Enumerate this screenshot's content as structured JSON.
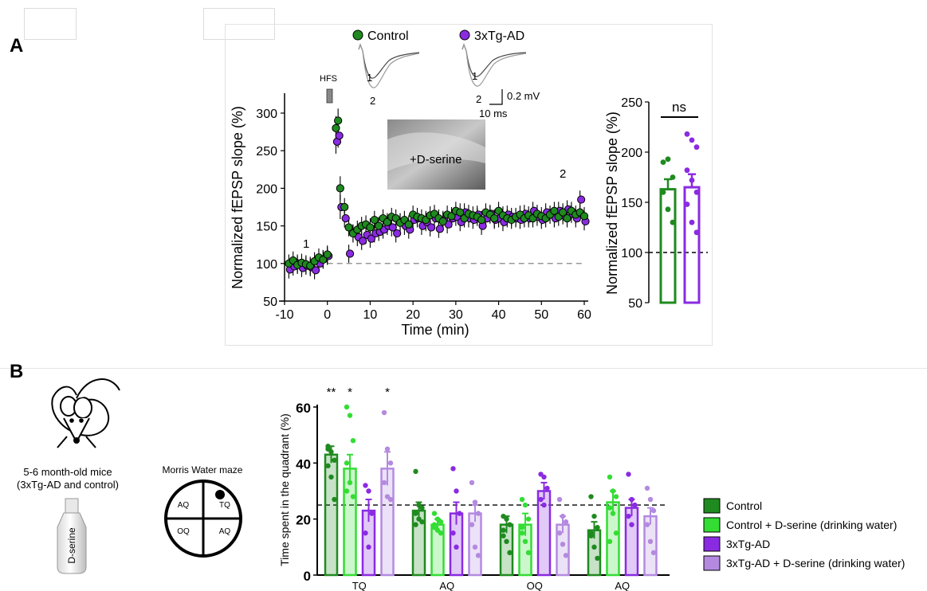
{
  "panels": {
    "a_label": "A",
    "b_label": "B"
  },
  "colors": {
    "control": "#1f8a1f",
    "control_dser": "#33dd33",
    "tg": "#8a2be2",
    "tg_dser": "#b48ae0",
    "dashed": "#777777"
  },
  "panelA": {
    "legend": [
      "Control",
      "3xTg-AD"
    ],
    "hfs_label": "HFS",
    "inset_label": "+D-serine",
    "trace_labels": {
      "one": "1",
      "two": "2"
    },
    "scalebar": {
      "voltage": "0.2 mV",
      "time": "10 ms"
    },
    "timepoint_labels": {
      "one": "1",
      "two": "2"
    },
    "bar_significance": "ns"
  },
  "panelB": {
    "mouse_caption_line1": "5-6 month-old mice",
    "mouse_caption_line2": "(3xTg-AD and control)",
    "bottle_label": "D-serine",
    "maze_title": "Morris Water maze",
    "maze_quadrants": [
      "AQ",
      "TQ",
      "OQ",
      "AQ"
    ],
    "legend": [
      "Control",
      "Control + D-serine (drinking water)",
      "3xTg-AD",
      "3xTg-AD + D-serine (drinking water)"
    ]
  },
  "chart_data": [
    {
      "type": "scatter",
      "xlabel": "Time (min)",
      "ylabel": "Normalized fEPSP slope (%)",
      "xlim": [
        -10,
        60
      ],
      "ylim": [
        50,
        300
      ],
      "xticks": [
        -10,
        0,
        10,
        20,
        30,
        40,
        50,
        60
      ],
      "yticks": [
        50,
        100,
        150,
        200,
        250,
        300
      ],
      "baseline": 100,
      "series": [
        {
          "name": "Control",
          "x": [
            -9,
            -8,
            -7,
            -6,
            -5,
            -4,
            -3,
            -2,
            -1,
            0,
            2,
            2.5,
            3,
            4,
            5,
            6,
            7,
            8,
            9,
            10,
            11,
            12,
            13,
            14,
            15,
            16,
            17,
            18,
            19,
            20,
            21,
            22,
            23,
            24,
            25,
            26,
            27,
            28,
            29,
            30,
            31,
            32,
            33,
            34,
            35,
            36,
            37,
            38,
            39,
            40,
            41,
            42,
            43,
            44,
            45,
            46,
            47,
            48,
            49,
            50,
            51,
            52,
            53,
            54,
            55,
            56,
            57,
            58,
            59,
            60
          ],
          "y": [
            100,
            104,
            98,
            101,
            99,
            97,
            103,
            108,
            105,
            112,
            280,
            290,
            200,
            175,
            148,
            140,
            145,
            150,
            152,
            148,
            158,
            150,
            160,
            155,
            162,
            160,
            154,
            158,
            152,
            165,
            162,
            160,
            158,
            164,
            166,
            160,
            156,
            165,
            163,
            170,
            168,
            160,
            166,
            164,
            162,
            158,
            168,
            165,
            160,
            170,
            164,
            160,
            158,
            162,
            165,
            160,
            164,
            160,
            166,
            163,
            160,
            165,
            170,
            162,
            168,
            160,
            170,
            165,
            168,
            163
          ]
        },
        {
          "name": "3xTg-AD",
          "x": [
            -9,
            -8,
            -7,
            -6,
            -5,
            -4,
            -3,
            -2,
            -1,
            0,
            2,
            2.5,
            3,
            4,
            5,
            6,
            7,
            8,
            9,
            10,
            11,
            12,
            13,
            14,
            15,
            16,
            17,
            18,
            19,
            20,
            21,
            22,
            23,
            24,
            25,
            26,
            27,
            28,
            29,
            30,
            31,
            32,
            33,
            34,
            35,
            36,
            37,
            38,
            39,
            40,
            41,
            42,
            43,
            44,
            45,
            46,
            47,
            48,
            49,
            50,
            51,
            52,
            53,
            54,
            55,
            56,
            57,
            58,
            59,
            60
          ],
          "y": [
            92,
            96,
            100,
            94,
            97,
            95,
            91,
            100,
            106,
            110,
            262,
            270,
            175,
            160,
            113,
            140,
            135,
            130,
            138,
            133,
            140,
            142,
            145,
            150,
            148,
            140,
            155,
            150,
            145,
            158,
            160,
            150,
            155,
            148,
            160,
            146,
            158,
            152,
            160,
            162,
            155,
            168,
            160,
            158,
            165,
            150,
            160,
            166,
            158,
            160,
            155,
            165,
            162,
            160,
            158,
            166,
            160,
            170,
            162,
            158,
            168,
            165,
            160,
            170,
            164,
            172,
            166,
            160,
            185,
            156
          ]
        }
      ]
    },
    {
      "type": "bar",
      "ylabel": "Normalized fEPSP slope (%)",
      "ylim": [
        50,
        250
      ],
      "yticks": [
        50,
        100,
        150,
        200,
        250
      ],
      "baseline": 100,
      "categories": [
        "Control",
        "3xTg-AD"
      ],
      "values": [
        163,
        165
      ],
      "sem": [
        10,
        13
      ],
      "points": [
        [
          190,
          193,
          175,
          160,
          143,
          130
        ],
        [
          218,
          212,
          205,
          182,
          172,
          160,
          148,
          130,
          120
        ]
      ]
    },
    {
      "type": "bar",
      "ylabel": "Time spent in the quadrant (%)",
      "ylim": [
        0,
        60
      ],
      "yticks": [
        0,
        20,
        40,
        60
      ],
      "chance_line": 25,
      "categories": [
        "TQ",
        "AQ",
        "OQ",
        "AQ"
      ],
      "significance": [
        "**",
        "*",
        "",
        "*"
      ],
      "series": [
        {
          "name": "Control",
          "values": [
            43,
            23,
            18,
            16
          ],
          "sem": [
            3,
            3,
            3,
            3
          ],
          "points": [
            [
              46,
              44,
              41,
              39,
              35,
              27,
              45
            ],
            [
              37,
              25,
              24,
              22,
              20,
              19,
              18
            ],
            [
              21,
              20,
              18,
              16,
              12,
              8,
              14
            ],
            [
              28,
              21,
              17,
              14,
              10,
              6,
              15
            ]
          ]
        },
        {
          "name": "Control + D-serine (drinking water)",
          "values": [
            38,
            18,
            18,
            26
          ],
          "sem": [
            5,
            2,
            4,
            4
          ],
          "points": [
            [
              60,
              57,
              48,
              40,
              33,
              28,
              30
            ],
            [
              22,
              20,
              19,
              18,
              16,
              15,
              17
            ],
            [
              27,
              25,
              20,
              17,
              12,
              8,
              15
            ],
            [
              35,
              30,
              28,
              24,
              22,
              15,
              12
            ]
          ]
        },
        {
          "name": "3xTg-AD",
          "values": [
            23,
            22,
            30,
            24
          ],
          "sem": [
            4,
            4,
            3,
            3
          ],
          "points": [
            [
              32,
              30,
              22,
              15,
              10
            ],
            [
              38,
              30,
              22,
              15,
              10
            ],
            [
              36,
              35,
              31,
              27,
              25
            ],
            [
              36,
              27,
              25,
              21,
              18
            ]
          ]
        },
        {
          "name": "3xTg-AD + D-serine (drinking water)",
          "values": [
            38,
            22,
            18,
            21
          ],
          "sem": [
            6,
            3,
            3,
            3
          ],
          "points": [
            [
              58,
              45,
              40,
              33,
              28,
              27
            ],
            [
              33,
              26,
              22,
              18,
              10,
              7
            ],
            [
              27,
              21,
              19,
              15,
              11,
              7
            ],
            [
              31,
              27,
              23,
              18,
              12,
              8
            ]
          ]
        }
      ]
    }
  ]
}
